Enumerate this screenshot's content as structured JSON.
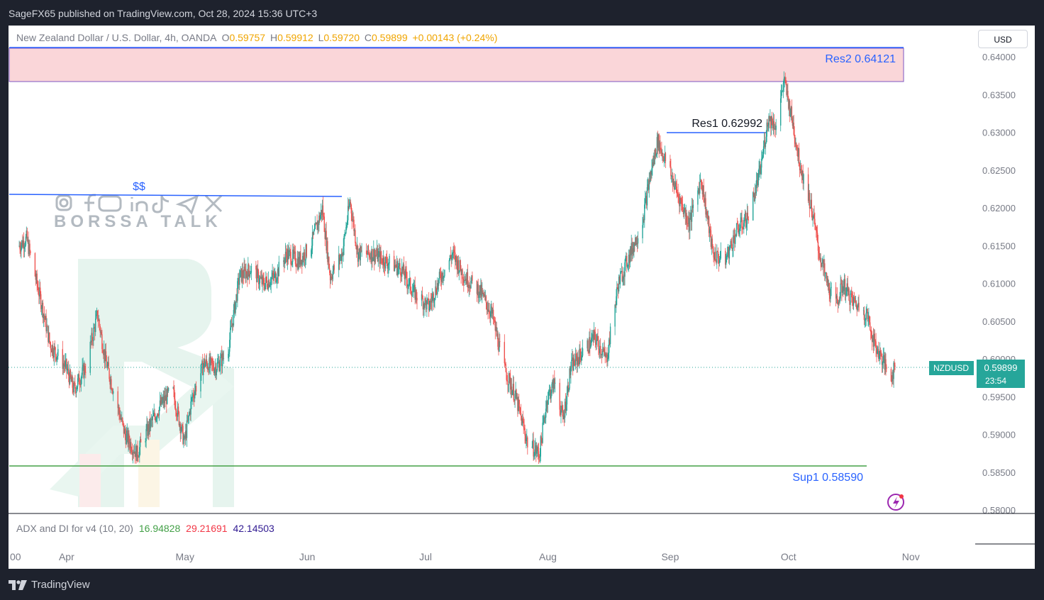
{
  "header": {
    "published_by": "SageFX65 published on TradingView.com, Oct 28, 2024 15:36 UTC+3"
  },
  "legend": {
    "symbol": "New Zealand Dollar / U.S. Dollar, 4h, OANDA",
    "open_label": "O",
    "open": "0.59757",
    "high_label": "H",
    "high": "0.59912",
    "low_label": "L",
    "low": "0.59720",
    "close_label": "C",
    "close": "0.59899",
    "change": "+0.00143 (+0.24%)"
  },
  "currency_button": "USD",
  "price_tag": {
    "symbol": "NZDUSD",
    "price": "0.59899",
    "countdown": "23:54"
  },
  "indicator": {
    "name": "ADX and DI for v4 (10, 20)",
    "adx": "16.94828",
    "di_plus": "29.21691",
    "di_minus": "42.14503"
  },
  "watermark": {
    "text": "BORSSA TALK",
    "social_icons": [
      "instagram-icon",
      "facebook-icon",
      "youtube-icon",
      "linkedin-icon",
      "tiktok-icon",
      "telegram-icon",
      "x-icon"
    ]
  },
  "footer": {
    "brand": "TradingView"
  },
  "colors": {
    "up": "#26a69a",
    "down": "#ef5350",
    "res": "#2962ff",
    "sup": "#43a047",
    "zone": "#f8c5c9"
  },
  "chart_data": {
    "type": "candlestick",
    "symbol": "NZDUSD",
    "timeframe": "4h",
    "ylim": [
      0.58,
      0.641
    ],
    "y_ticks": [
      "0.64000",
      "0.63500",
      "0.63000",
      "0.62500",
      "0.62000",
      "0.61500",
      "0.61000",
      "0.60500",
      "0.60000",
      "0.59500",
      "0.59000",
      "0.58500",
      "0.58000"
    ],
    "x_ticks": [
      "00",
      "Apr",
      "May",
      "Jun",
      "Jul",
      "Aug",
      "Sep",
      "Oct",
      "Nov"
    ],
    "price_path": [
      {
        "date": "2024-03-20",
        "price": 0.615
      },
      {
        "date": "2024-03-22",
        "price": 0.616
      },
      {
        "date": "2024-03-26",
        "price": 0.607
      },
      {
        "date": "2024-03-28",
        "price": 0.602
      },
      {
        "date": "2024-04-01",
        "price": 0.599
      },
      {
        "date": "2024-04-03",
        "price": 0.596
      },
      {
        "date": "2024-04-06",
        "price": 0.599
      },
      {
        "date": "2024-04-09",
        "price": 0.606
      },
      {
        "date": "2024-04-11",
        "price": 0.6
      },
      {
        "date": "2024-04-13",
        "price": 0.596
      },
      {
        "date": "2024-04-16",
        "price": 0.59
      },
      {
        "date": "2024-04-19",
        "price": 0.5875
      },
      {
        "date": "2024-04-22",
        "price": 0.591
      },
      {
        "date": "2024-04-25",
        "price": 0.594
      },
      {
        "date": "2024-04-28",
        "price": 0.596
      },
      {
        "date": "2024-05-01",
        "price": 0.589
      },
      {
        "date": "2024-05-03",
        "price": 0.595
      },
      {
        "date": "2024-05-06",
        "price": 0.5995
      },
      {
        "date": "2024-05-09",
        "price": 0.599
      },
      {
        "date": "2024-05-12",
        "price": 0.601
      },
      {
        "date": "2024-05-15",
        "price": 0.611
      },
      {
        "date": "2024-05-18",
        "price": 0.612
      },
      {
        "date": "2024-05-21",
        "price": 0.61
      },
      {
        "date": "2024-05-24",
        "price": 0.611
      },
      {
        "date": "2024-05-27",
        "price": 0.614
      },
      {
        "date": "2024-05-30",
        "price": 0.613
      },
      {
        "date": "2024-06-02",
        "price": 0.615
      },
      {
        "date": "2024-06-05",
        "price": 0.62
      },
      {
        "date": "2024-06-07",
        "price": 0.611
      },
      {
        "date": "2024-06-10",
        "price": 0.614
      },
      {
        "date": "2024-06-12",
        "price": 0.621
      },
      {
        "date": "2024-06-14",
        "price": 0.614
      },
      {
        "date": "2024-06-18",
        "price": 0.614
      },
      {
        "date": "2024-06-21",
        "price": 0.613
      },
      {
        "date": "2024-06-25",
        "price": 0.612
      },
      {
        "date": "2024-06-28",
        "price": 0.609
      },
      {
        "date": "2024-07-02",
        "price": 0.607
      },
      {
        "date": "2024-07-05",
        "price": 0.611
      },
      {
        "date": "2024-07-08",
        "price": 0.614
      },
      {
        "date": "2024-07-11",
        "price": 0.611
      },
      {
        "date": "2024-07-15",
        "price": 0.609
      },
      {
        "date": "2024-07-18",
        "price": 0.606
      },
      {
        "date": "2024-07-21",
        "price": 0.599
      },
      {
        "date": "2024-07-24",
        "price": 0.595
      },
      {
        "date": "2024-07-27",
        "price": 0.589
      },
      {
        "date": "2024-07-30",
        "price": 0.5875
      },
      {
        "date": "2024-08-01",
        "price": 0.595
      },
      {
        "date": "2024-08-03",
        "price": 0.597
      },
      {
        "date": "2024-08-05",
        "price": 0.592
      },
      {
        "date": "2024-08-07",
        "price": 0.599
      },
      {
        "date": "2024-08-10",
        "price": 0.601
      },
      {
        "date": "2024-08-13",
        "price": 0.603
      },
      {
        "date": "2024-08-16",
        "price": 0.6
      },
      {
        "date": "2024-08-19",
        "price": 0.61
      },
      {
        "date": "2024-08-22",
        "price": 0.614
      },
      {
        "date": "2024-08-25",
        "price": 0.618
      },
      {
        "date": "2024-08-27",
        "price": 0.624
      },
      {
        "date": "2024-08-29",
        "price": 0.629
      },
      {
        "date": "2024-09-01",
        "price": 0.625
      },
      {
        "date": "2024-09-03",
        "price": 0.622
      },
      {
        "date": "2024-09-06",
        "price": 0.618
      },
      {
        "date": "2024-09-09",
        "price": 0.624
      },
      {
        "date": "2024-09-12",
        "price": 0.614
      },
      {
        "date": "2024-09-15",
        "price": 0.613
      },
      {
        "date": "2024-09-18",
        "price": 0.617
      },
      {
        "date": "2024-09-21",
        "price": 0.619
      },
      {
        "date": "2024-09-24",
        "price": 0.625
      },
      {
        "date": "2024-09-26",
        "price": 0.632
      },
      {
        "date": "2024-09-28",
        "price": 0.631
      },
      {
        "date": "2024-09-30",
        "price": 0.637
      },
      {
        "date": "2024-10-02",
        "price": 0.632
      },
      {
        "date": "2024-10-04",
        "price": 0.626
      },
      {
        "date": "2024-10-07",
        "price": 0.62
      },
      {
        "date": "2024-10-09",
        "price": 0.614
      },
      {
        "date": "2024-10-11",
        "price": 0.61
      },
      {
        "date": "2024-10-13",
        "price": 0.607
      },
      {
        "date": "2024-10-15",
        "price": 0.61
      },
      {
        "date": "2024-10-17",
        "price": 0.608
      },
      {
        "date": "2024-10-19",
        "price": 0.607
      },
      {
        "date": "2024-10-21",
        "price": 0.606
      },
      {
        "date": "2024-10-23",
        "price": 0.602
      },
      {
        "date": "2024-10-25",
        "price": 0.6
      },
      {
        "date": "2024-10-27",
        "price": 0.5975
      },
      {
        "date": "2024-10-28",
        "price": 0.599
      }
    ],
    "annotations": [
      {
        "type": "zone",
        "label": "Res2 0.64121",
        "low": 0.6368,
        "high": 0.6412
      },
      {
        "type": "line",
        "label": "Res1 0.62992",
        "value": 0.63,
        "from": "2024-08-29",
        "to": "2024-09-26"
      },
      {
        "type": "line",
        "label": "$$",
        "value": 0.6218,
        "from": "2024-03-18",
        "to": "2024-06-06"
      },
      {
        "type": "line",
        "label": "Sup1 0.58590",
        "value": 0.5859,
        "from": "2024-03-18",
        "to": "2024-10-22"
      }
    ]
  }
}
